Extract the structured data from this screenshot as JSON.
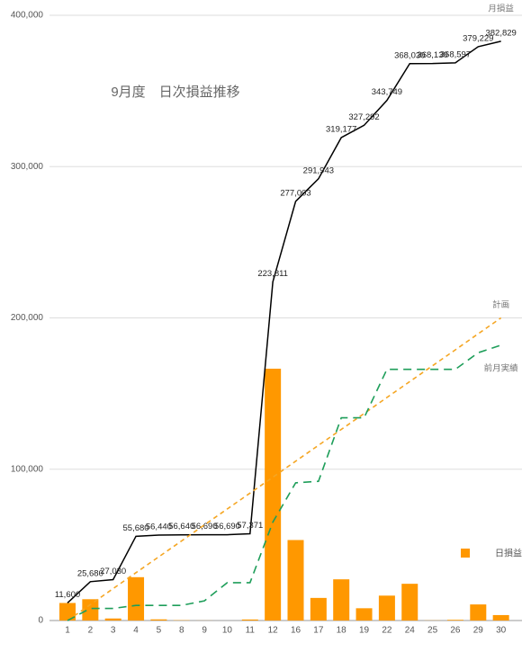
{
  "chart_data": {
    "type": "combo",
    "title": "9月度　日次損益推移",
    "categories": [
      "1",
      "2",
      "3",
      "4",
      "5",
      "8",
      "9",
      "10",
      "11",
      "12",
      "16",
      "17",
      "18",
      "19",
      "22",
      "24",
      "25",
      "26",
      "29",
      "30"
    ],
    "ylim": [
      0,
      400000
    ],
    "yticks": [
      0,
      {
        "value": 100000,
        "label": "100,000"
      },
      {
        "value": 200000,
        "label": "200,000"
      },
      {
        "value": 300000,
        "label": "300,000"
      },
      {
        "value": 400000,
        "label": "400,000"
      }
    ],
    "grid": true,
    "series": [
      {
        "name": "日損益",
        "type": "bar",
        "color": "#ff9800",
        "values": [
          11600,
          14080,
          1350,
          28650,
          760,
          200,
          50,
          0,
          680,
          166440,
          53192,
          14940,
          27234,
          8115,
          16457,
          24281,
          100,
          467,
          10632,
          3600
        ]
      },
      {
        "name": "月損益",
        "type": "line",
        "color": "#000000",
        "style": "solid",
        "values": [
          11600,
          25680,
          27030,
          55680,
          56440,
          56640,
          56690,
          56690,
          57371,
          223811,
          277003,
          291943,
          319177,
          327292,
          343749,
          368030,
          368130,
          368597,
          379229,
          382829
        ],
        "value_labels": [
          "11,600",
          "25,680",
          "27,030",
          "55,680",
          "56,440",
          "56,640",
          "56,690",
          "56,690",
          "57,371",
          "223,811",
          "277,003",
          "291,943",
          "319,177",
          "327,292",
          "343,749",
          "368,030",
          "368,130",
          "368,597",
          "379,229",
          "382,829"
        ]
      },
      {
        "name": "計画",
        "type": "line",
        "color": "#f5a623",
        "style": "dashed",
        "values": [
          0,
          10500,
          21100,
          31600,
          42100,
          52600,
          63200,
          73700,
          84200,
          94700,
          105300,
          115800,
          126300,
          136800,
          147400,
          157900,
          168400,
          178900,
          189500,
          200000
        ]
      },
      {
        "name": "前月実績",
        "type": "line",
        "color": "#1e9e5a",
        "style": "dashed",
        "values": [
          0,
          8000,
          8000,
          10000,
          10000,
          10000,
          13000,
          25000,
          25000,
          65000,
          91000,
          92000,
          134000,
          134000,
          166000,
          166000,
          166000,
          166000,
          177000,
          182000
        ]
      }
    ]
  }
}
